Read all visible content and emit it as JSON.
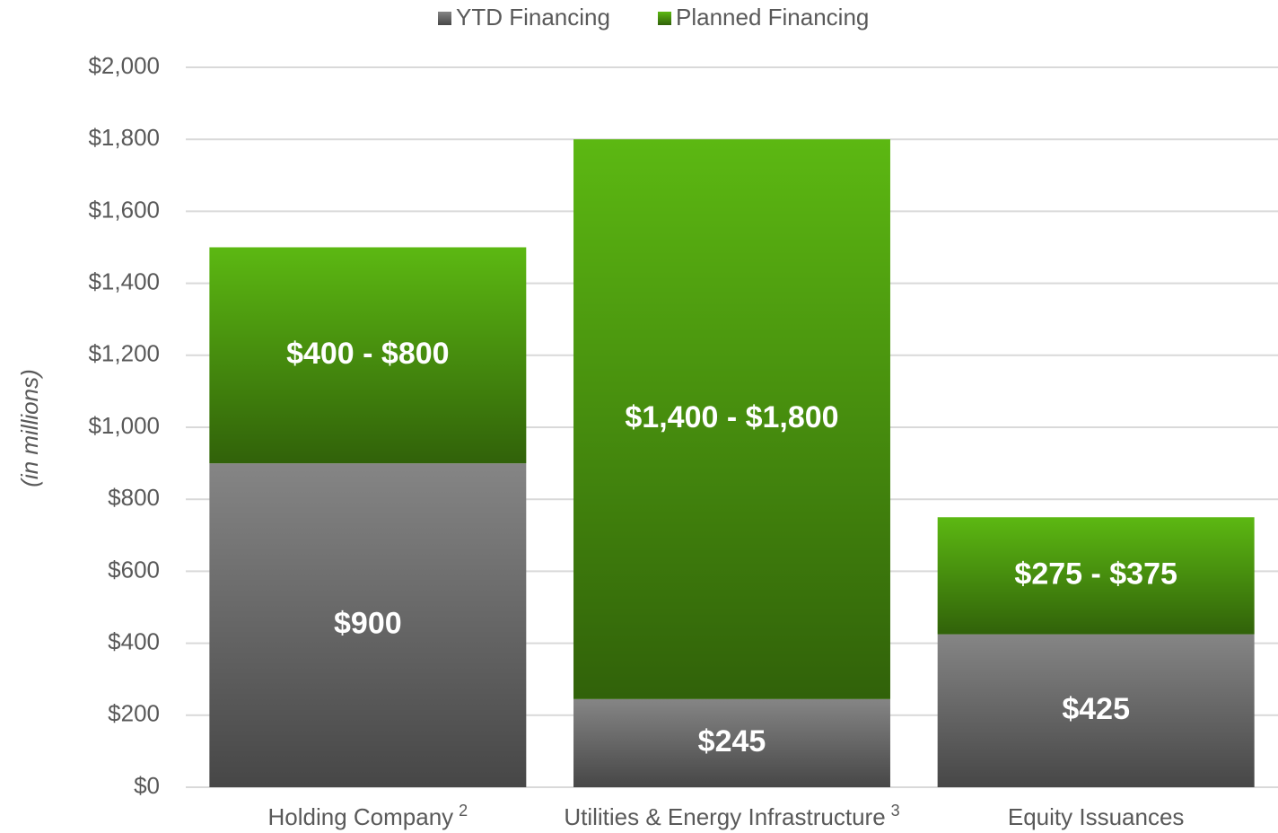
{
  "chart_data": {
    "type": "stacked_bar",
    "y_label": "(in millions)",
    "categories": [
      "Holding Company",
      "Utilities & Energy Infrastructure",
      "Equity Issuances"
    ],
    "category_notes": [
      "2",
      "3",
      null
    ],
    "series": [
      {
        "name": "YTD Financing",
        "color": "#858585",
        "values": [
          900,
          245,
          425
        ],
        "value_labels": [
          "$900",
          "$245",
          "$425"
        ]
      },
      {
        "name": "Planned Financing",
        "color": "#5cb812",
        "values": [
          600,
          1555,
          325
        ],
        "value_labels": [
          "$400 - $800",
          "$1,400 - $1,800",
          "$275 - $375"
        ]
      }
    ],
    "ylim": [
      0,
      2000
    ],
    "yticks": [
      {
        "value": 0,
        "label": "$0"
      },
      {
        "value": 200,
        "label": "$200"
      },
      {
        "value": 400,
        "label": "$400"
      },
      {
        "value": 600,
        "label": "$600"
      },
      {
        "value": 800,
        "label": "$800"
      },
      {
        "value": 1000,
        "label": "$1,000"
      },
      {
        "value": 1200,
        "label": "$1,200"
      },
      {
        "value": 1400,
        "label": "$1,400"
      },
      {
        "value": 1600,
        "label": "$1,600"
      },
      {
        "value": 1800,
        "label": "$1,800"
      },
      {
        "value": 2000,
        "label": "$2,000"
      }
    ],
    "grid": true,
    "legend": "top"
  }
}
